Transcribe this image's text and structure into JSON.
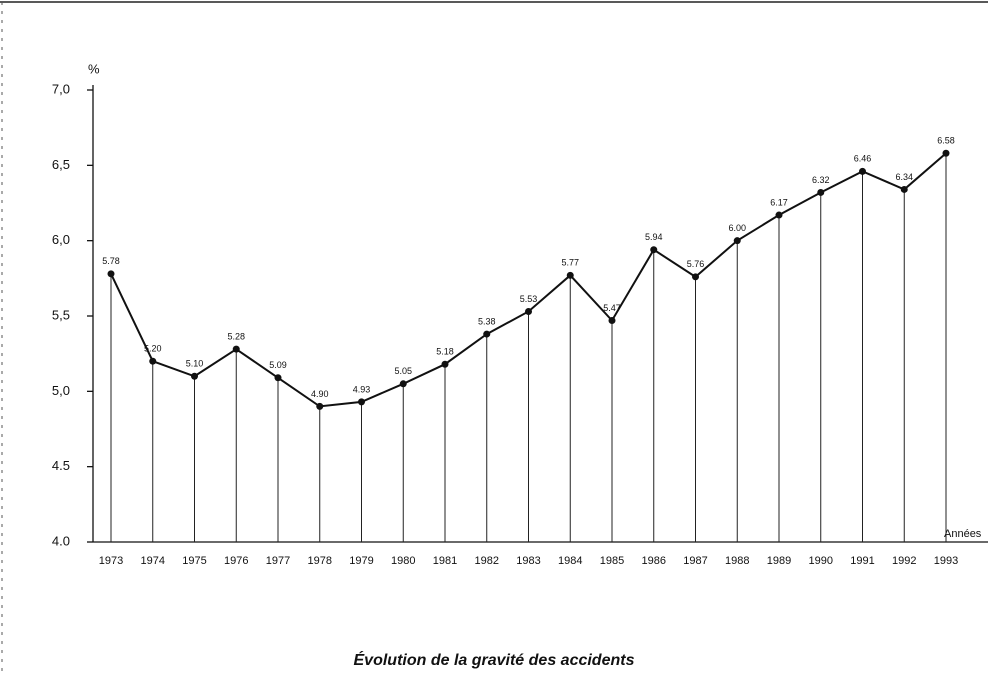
{
  "chart_data": {
    "type": "line",
    "title": "Évolution de la gravité des accidents",
    "y_label": "%",
    "x_label": "Années",
    "categories": [
      "1973",
      "1974",
      "1975",
      "1976",
      "1977",
      "1978",
      "1979",
      "1980",
      "1981",
      "1982",
      "1983",
      "1984",
      "1985",
      "1986",
      "1987",
      "1988",
      "1989",
      "1990",
      "1991",
      "1992",
      "1993"
    ],
    "values": [
      5.78,
      5.2,
      5.1,
      5.28,
      5.09,
      4.9,
      4.93,
      5.05,
      5.18,
      5.38,
      5.53,
      5.77,
      5.47,
      5.94,
      5.76,
      6.0,
      6.17,
      6.32,
      6.46,
      6.34,
      6.58
    ],
    "value_labels": [
      "5.78",
      "5.20",
      "5.10",
      "5.28",
      "5.09",
      "4.90",
      "4.93",
      "5.05",
      "5.18",
      "5.38",
      "5.53",
      "5.77",
      "5.47",
      "5.94",
      "5.76",
      "6.00",
      "6.17",
      "6.32",
      "6.46",
      "6.34",
      "6.58"
    ],
    "color": "#111111",
    "ylim": [
      4,
      7
    ],
    "yticks": [
      {
        "value": 4,
        "label": "4.0"
      },
      {
        "value": 4.5,
        "label": "4.5"
      },
      {
        "value": 5,
        "label": "5,0"
      },
      {
        "value": 5.5,
        "label": "5,5"
      },
      {
        "value": 6,
        "label": "6,0"
      },
      {
        "value": 6.5,
        "label": "6,5"
      },
      {
        "value": 7,
        "label": "7,0"
      }
    ]
  }
}
